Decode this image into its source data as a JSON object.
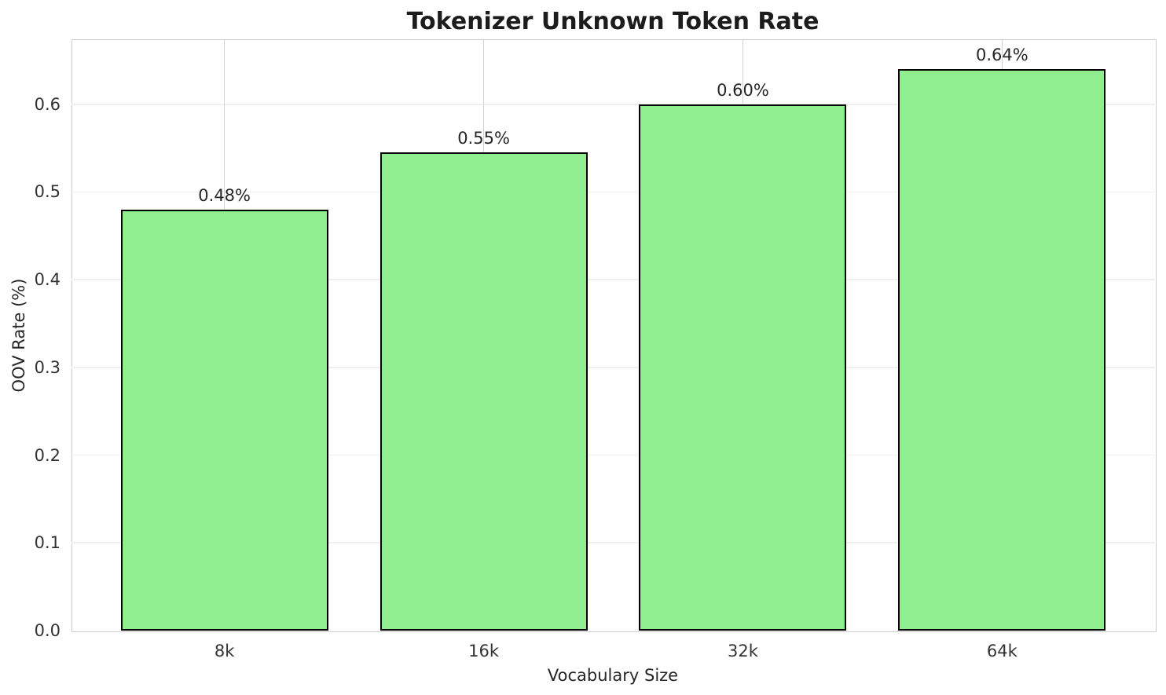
{
  "chart_data": {
    "type": "bar",
    "title": "Tokenizer Unknown Token Rate",
    "xlabel": "Vocabulary Size",
    "ylabel": "OOV Rate (%)",
    "categories": [
      "8k",
      "16k",
      "32k",
      "64k"
    ],
    "values": [
      0.48,
      0.545,
      0.6,
      0.64
    ],
    "bar_labels": [
      "0.48%",
      "0.55%",
      "0.60%",
      "0.64%"
    ],
    "yticks": [
      0.0,
      0.1,
      0.2,
      0.3,
      0.4,
      0.5,
      0.6
    ],
    "ytick_labels": [
      "0.0",
      "0.1",
      "0.2",
      "0.3",
      "0.4",
      "0.5",
      "0.6"
    ],
    "ylim": [
      0,
      0.674
    ],
    "grid": true,
    "legend": null,
    "bar_color": "#90EE90",
    "bar_edge_color": "#000000",
    "h_grid_color": "#f0f0f0",
    "v_grid_color": "#d2d2d2",
    "spine_color": "#cdcdcd",
    "text_color": "#262626",
    "title_color": "#1c1c1c"
  }
}
